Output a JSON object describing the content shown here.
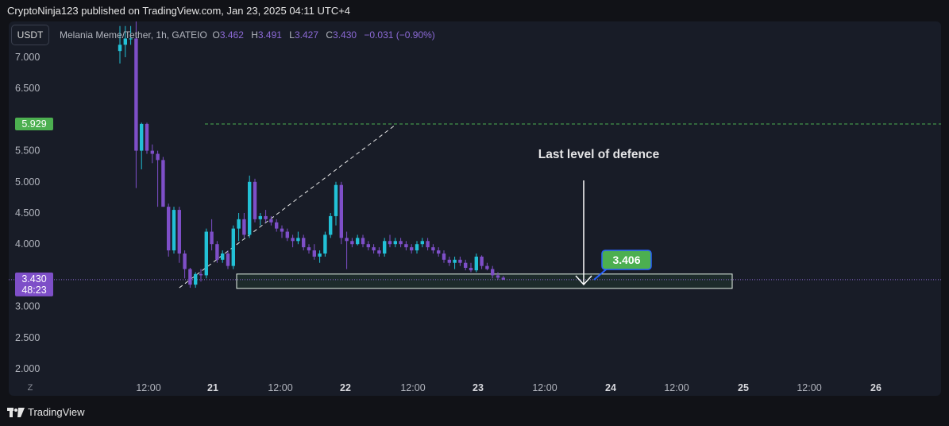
{
  "header": {
    "text": "CryptoNinja123 published on TradingView.com, Jan 23, 2025 04:11 UTC+4"
  },
  "toolbar": {
    "currency": "USDT"
  },
  "legend": {
    "symbol": "Melania Meme/Tether, 1h, GATEIO",
    "o_label": "O",
    "o": "3.462",
    "h_label": "H",
    "h": "3.491",
    "l_label": "L",
    "l": "3.427",
    "c_label": "C",
    "c": "3.430",
    "change": "−0.031 (−0.90%)"
  },
  "zoom_label": "Z",
  "footer": {
    "brand": "TradingView"
  },
  "colors": {
    "up": "#22c1d6",
    "down": "#7e4fc8",
    "price_line": "#8c6ad6",
    "level_badge": "#4caf50",
    "label_bg": "#4caf50",
    "label_border": "#2962ff"
  },
  "chart_data": {
    "type": "candlestick",
    "y_axis": {
      "ticks": [
        "7.000",
        "6.500",
        "5.500",
        "5.000",
        "4.500",
        "4.000",
        "3.000",
        "2.500",
        "2.000"
      ],
      "range": [
        1.9,
        7.35
      ]
    },
    "x_axis": {
      "labels": [
        "12:00",
        "21",
        "12:00",
        "22",
        "12:00",
        "23",
        "12:00",
        "24",
        "12:00",
        "25",
        "12:00",
        "26"
      ],
      "bold": [
        "21",
        "22",
        "23",
        "24",
        "25",
        "26"
      ]
    },
    "price_badge": {
      "value": "3.430",
      "countdown": "48:23"
    },
    "level_badge": {
      "value": "5.929"
    },
    "horizontal_level": 5.929,
    "annotation": "Last level of defence",
    "callout": "3.406",
    "support_zone": [
      3.29,
      3.52
    ],
    "trendline": {
      "from": [
        2,
        3.3
      ],
      "to": [
        12.3,
        5.9
      ]
    },
    "candles": [
      {
        "o": 7.1,
        "h": 7.5,
        "l": 6.9,
        "c": 7.2
      },
      {
        "o": 7.2,
        "h": 7.5,
        "l": 7.0,
        "c": 7.3
      },
      {
        "o": 7.3,
        "h": 7.5,
        "l": 7.2,
        "c": 7.3
      },
      {
        "o": 7.3,
        "h": 7.6,
        "l": 4.9,
        "c": 5.5
      },
      {
        "o": 5.5,
        "h": 5.95,
        "l": 5.2,
        "c": 5.93
      },
      {
        "o": 5.93,
        "h": 5.95,
        "l": 5.45,
        "c": 5.5
      },
      {
        "o": 5.5,
        "h": 5.6,
        "l": 5.3,
        "c": 5.45
      },
      {
        "o": 5.45,
        "h": 5.5,
        "l": 4.6,
        "c": 5.35
      },
      {
        "o": 5.35,
        "h": 5.4,
        "l": 4.6,
        "c": 4.6
      },
      {
        "o": 4.6,
        "h": 4.65,
        "l": 3.8,
        "c": 3.9
      },
      {
        "o": 3.9,
        "h": 4.6,
        "l": 3.85,
        "c": 4.55
      },
      {
        "o": 4.55,
        "h": 4.6,
        "l": 3.7,
        "c": 3.85
      },
      {
        "o": 3.85,
        "h": 3.9,
        "l": 3.45,
        "c": 3.6
      },
      {
        "o": 3.6,
        "h": 3.62,
        "l": 3.3,
        "c": 3.35
      },
      {
        "o": 3.35,
        "h": 3.55,
        "l": 3.3,
        "c": 3.52
      },
      {
        "o": 3.52,
        "h": 3.6,
        "l": 3.4,
        "c": 3.5
      },
      {
        "o": 3.5,
        "h": 4.25,
        "l": 3.45,
        "c": 4.2
      },
      {
        "o": 4.2,
        "h": 4.4,
        "l": 3.9,
        "c": 4.0
      },
      {
        "o": 4.0,
        "h": 4.05,
        "l": 3.7,
        "c": 3.75
      },
      {
        "o": 3.75,
        "h": 3.9,
        "l": 3.7,
        "c": 3.85
      },
      {
        "o": 3.85,
        "h": 3.9,
        "l": 3.6,
        "c": 3.65
      },
      {
        "o": 3.65,
        "h": 4.3,
        "l": 3.6,
        "c": 4.25
      },
      {
        "o": 4.25,
        "h": 4.5,
        "l": 4.05,
        "c": 4.4
      },
      {
        "o": 4.4,
        "h": 4.5,
        "l": 4.1,
        "c": 4.15
      },
      {
        "o": 4.15,
        "h": 5.1,
        "l": 4.1,
        "c": 5.0
      },
      {
        "o": 5.0,
        "h": 5.05,
        "l": 4.35,
        "c": 4.4
      },
      {
        "o": 4.4,
        "h": 4.5,
        "l": 4.3,
        "c": 4.45
      },
      {
        "o": 4.45,
        "h": 4.55,
        "l": 4.35,
        "c": 4.4
      },
      {
        "o": 4.4,
        "h": 4.45,
        "l": 4.3,
        "c": 4.35
      },
      {
        "o": 4.35,
        "h": 4.4,
        "l": 4.2,
        "c": 4.25
      },
      {
        "o": 4.25,
        "h": 4.3,
        "l": 4.1,
        "c": 4.2
      },
      {
        "o": 4.2,
        "h": 4.25,
        "l": 4.05,
        "c": 4.1
      },
      {
        "o": 4.1,
        "h": 4.15,
        "l": 3.95,
        "c": 4.05
      },
      {
        "o": 4.05,
        "h": 4.2,
        "l": 4.0,
        "c": 4.1
      },
      {
        "o": 4.1,
        "h": 4.15,
        "l": 3.9,
        "c": 3.95
      },
      {
        "o": 3.95,
        "h": 4.0,
        "l": 3.85,
        "c": 3.9
      },
      {
        "o": 3.9,
        "h": 4.0,
        "l": 3.75,
        "c": 3.8
      },
      {
        "o": 3.8,
        "h": 3.9,
        "l": 3.7,
        "c": 3.85
      },
      {
        "o": 3.85,
        "h": 4.2,
        "l": 3.8,
        "c": 4.15
      },
      {
        "o": 4.15,
        "h": 4.5,
        "l": 4.1,
        "c": 4.45
      },
      {
        "o": 4.45,
        "h": 5.0,
        "l": 4.3,
        "c": 4.95
      },
      {
        "o": 4.95,
        "h": 5.0,
        "l": 4.0,
        "c": 4.1
      },
      {
        "o": 4.1,
        "h": 4.2,
        "l": 3.6,
        "c": 4.05
      },
      {
        "o": 4.05,
        "h": 4.1,
        "l": 3.95,
        "c": 4.0
      },
      {
        "o": 4.0,
        "h": 4.15,
        "l": 3.98,
        "c": 4.1
      },
      {
        "o": 4.1,
        "h": 4.15,
        "l": 3.95,
        "c": 4.0
      },
      {
        "o": 4.0,
        "h": 4.05,
        "l": 3.9,
        "c": 3.95
      },
      {
        "o": 3.95,
        "h": 4.0,
        "l": 3.85,
        "c": 3.9
      },
      {
        "o": 3.9,
        "h": 3.95,
        "l": 3.8,
        "c": 3.85
      },
      {
        "o": 3.85,
        "h": 4.1,
        "l": 3.8,
        "c": 4.05
      },
      {
        "o": 4.05,
        "h": 4.15,
        "l": 3.95,
        "c": 4.0
      },
      {
        "o": 4.0,
        "h": 4.1,
        "l": 3.95,
        "c": 4.05
      },
      {
        "o": 4.05,
        "h": 4.1,
        "l": 3.95,
        "c": 4.0
      },
      {
        "o": 4.0,
        "h": 4.05,
        "l": 3.9,
        "c": 3.95
      },
      {
        "o": 3.95,
        "h": 4.0,
        "l": 3.85,
        "c": 3.9
      },
      {
        "o": 3.9,
        "h": 4.05,
        "l": 3.85,
        "c": 4.0
      },
      {
        "o": 4.0,
        "h": 4.1,
        "l": 3.95,
        "c": 4.05
      },
      {
        "o": 4.05,
        "h": 4.1,
        "l": 3.9,
        "c": 3.95
      },
      {
        "o": 3.95,
        "h": 4.0,
        "l": 3.85,
        "c": 3.9
      },
      {
        "o": 3.9,
        "h": 3.95,
        "l": 3.8,
        "c": 3.85
      },
      {
        "o": 3.85,
        "h": 3.9,
        "l": 3.7,
        "c": 3.75
      },
      {
        "o": 3.75,
        "h": 3.8,
        "l": 3.65,
        "c": 3.7
      },
      {
        "o": 3.7,
        "h": 3.8,
        "l": 3.6,
        "c": 3.75
      },
      {
        "o": 3.75,
        "h": 3.8,
        "l": 3.65,
        "c": 3.7
      },
      {
        "o": 3.7,
        "h": 3.75,
        "l": 3.58,
        "c": 3.62
      },
      {
        "o": 3.62,
        "h": 3.7,
        "l": 3.55,
        "c": 3.58
      },
      {
        "o": 3.58,
        "h": 3.85,
        "l": 3.55,
        "c": 3.8
      },
      {
        "o": 3.8,
        "h": 3.82,
        "l": 3.6,
        "c": 3.65
      },
      {
        "o": 3.65,
        "h": 3.7,
        "l": 3.58,
        "c": 3.6
      },
      {
        "o": 3.6,
        "h": 3.65,
        "l": 3.45,
        "c": 3.5
      },
      {
        "o": 3.5,
        "h": 3.55,
        "l": 3.43,
        "c": 3.462
      },
      {
        "o": 3.462,
        "h": 3.491,
        "l": 3.427,
        "c": 3.43
      }
    ]
  }
}
